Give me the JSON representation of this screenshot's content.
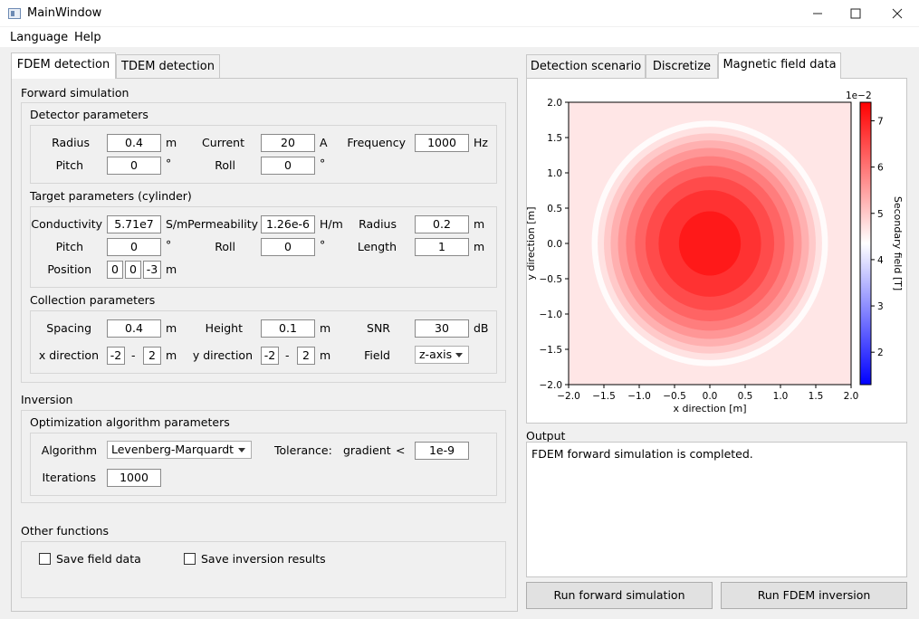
{
  "window": {
    "title": "MainWindow",
    "minimize_icon": "minimize-icon",
    "maximize_icon": "maximize-icon",
    "close_icon": "close-icon"
  },
  "menu": {
    "items": [
      "Language",
      "Help"
    ]
  },
  "left_tabs": [
    "FDEM detection",
    "TDEM detection"
  ],
  "forward": {
    "section_title": "Forward simulation",
    "detector": {
      "title": "Detector parameters",
      "radius_label": "Radius",
      "radius_value": "0.4",
      "radius_unit": "m",
      "current_label": "Current",
      "current_value": "20",
      "current_unit": "A",
      "frequency_label": "Frequency",
      "frequency_value": "1000",
      "frequency_unit": "Hz",
      "pitch_label": "Pitch",
      "pitch_value": "0",
      "pitch_unit": "°",
      "roll_label": "Roll",
      "roll_value": "0",
      "roll_unit": "°"
    },
    "target": {
      "title": "Target parameters (cylinder)",
      "conductivity_label": "Conductivity",
      "conductivity_value": "5.71e7",
      "conductivity_unit": "S/m",
      "permeability_label": "Permeability",
      "permeability_value": "1.26e-6",
      "permeability_unit": "H/m",
      "radius_label": "Radius",
      "radius_value": "0.2",
      "radius_unit": "m",
      "pitch_label": "Pitch",
      "pitch_value": "0",
      "pitch_unit": "°",
      "roll_label": "Roll",
      "roll_value": "0",
      "roll_unit": "°",
      "length_label": "Length",
      "length_value": "1",
      "length_unit": "m",
      "position_label": "Position",
      "position_x": "0",
      "position_y": "0",
      "position_z": "-3",
      "position_unit": "m"
    },
    "collection": {
      "title": "Collection parameters",
      "spacing_label": "Spacing",
      "spacing_value": "0.4",
      "spacing_unit": "m",
      "height_label": "Height",
      "height_value": "0.1",
      "height_unit": "m",
      "snr_label": "SNR",
      "snr_value": "30",
      "snr_unit": "dB",
      "xdir_label": "x direction",
      "x_min": "-2",
      "x_dash": "-",
      "x_max": "2",
      "x_unit": "m",
      "ydir_label": "y direction",
      "y_min": "-2",
      "y_dash": "-",
      "y_max": "2",
      "y_unit": "m",
      "field_label": "Field",
      "field_value": "z-axis"
    }
  },
  "inversion": {
    "section_title": "Inversion",
    "opt_title": "Optimization algorithm parameters",
    "algorithm_label": "Algorithm",
    "algorithm_value": "Levenberg-Marquardt",
    "tolerance_label": "Tolerance:",
    "gradient_label": "gradient",
    "lt": "<",
    "tolerance_value": "1e-9",
    "iterations_label": "Iterations",
    "iterations_value": "1000"
  },
  "other": {
    "section_title": "Other functions",
    "save_field": "Save field data",
    "save_field_checked": false,
    "save_inv": "Save inversion results",
    "save_inv_checked": false
  },
  "right_tabs": [
    "Detection scenario",
    "Discretize",
    "Magnetic field data"
  ],
  "active_right_tab": "Magnetic field data",
  "output": {
    "label": "Output",
    "text": "FDEM forward simulation is completed."
  },
  "buttons": {
    "forward": "Run forward simulation",
    "inversion": "Run FDEM inversion"
  },
  "chart_data": {
    "type": "heatmap",
    "xlabel": "x direction [m]",
    "ylabel": "y direction [m]",
    "colorbar_label": "Secondary field [T]",
    "colorbar_scale": "1e−2",
    "xlim": [
      -2.0,
      2.0
    ],
    "ylim": [
      -2.0,
      2.0
    ],
    "x_ticks": [
      "−2.0",
      "−1.5",
      "−1.0",
      "−0.5",
      "0.0",
      "0.5",
      "1.0",
      "1.5",
      "2.0"
    ],
    "y_ticks": [
      "2.0",
      "1.5",
      "1.0",
      "0.5",
      "0.0",
      "−0.5",
      "−1.0",
      "−1.5",
      "−2.0"
    ],
    "colorbar_ticks": [
      "7",
      "6",
      "5",
      "4",
      "3",
      "2"
    ],
    "colorbar_range": [
      1.3,
      7.4
    ],
    "colormap": [
      "#0000ff",
      "#ffffff",
      "#ff0000"
    ],
    "peak": {
      "x": 0.0,
      "y": 0.0,
      "value": 7.2
    },
    "contour_levels": [
      7.1,
      6.8,
      6.5,
      6.2,
      5.9,
      5.6,
      5.3,
      5.0,
      4.7,
      4.4
    ],
    "spread_m": 1.45,
    "edge_value": 4.4
  }
}
